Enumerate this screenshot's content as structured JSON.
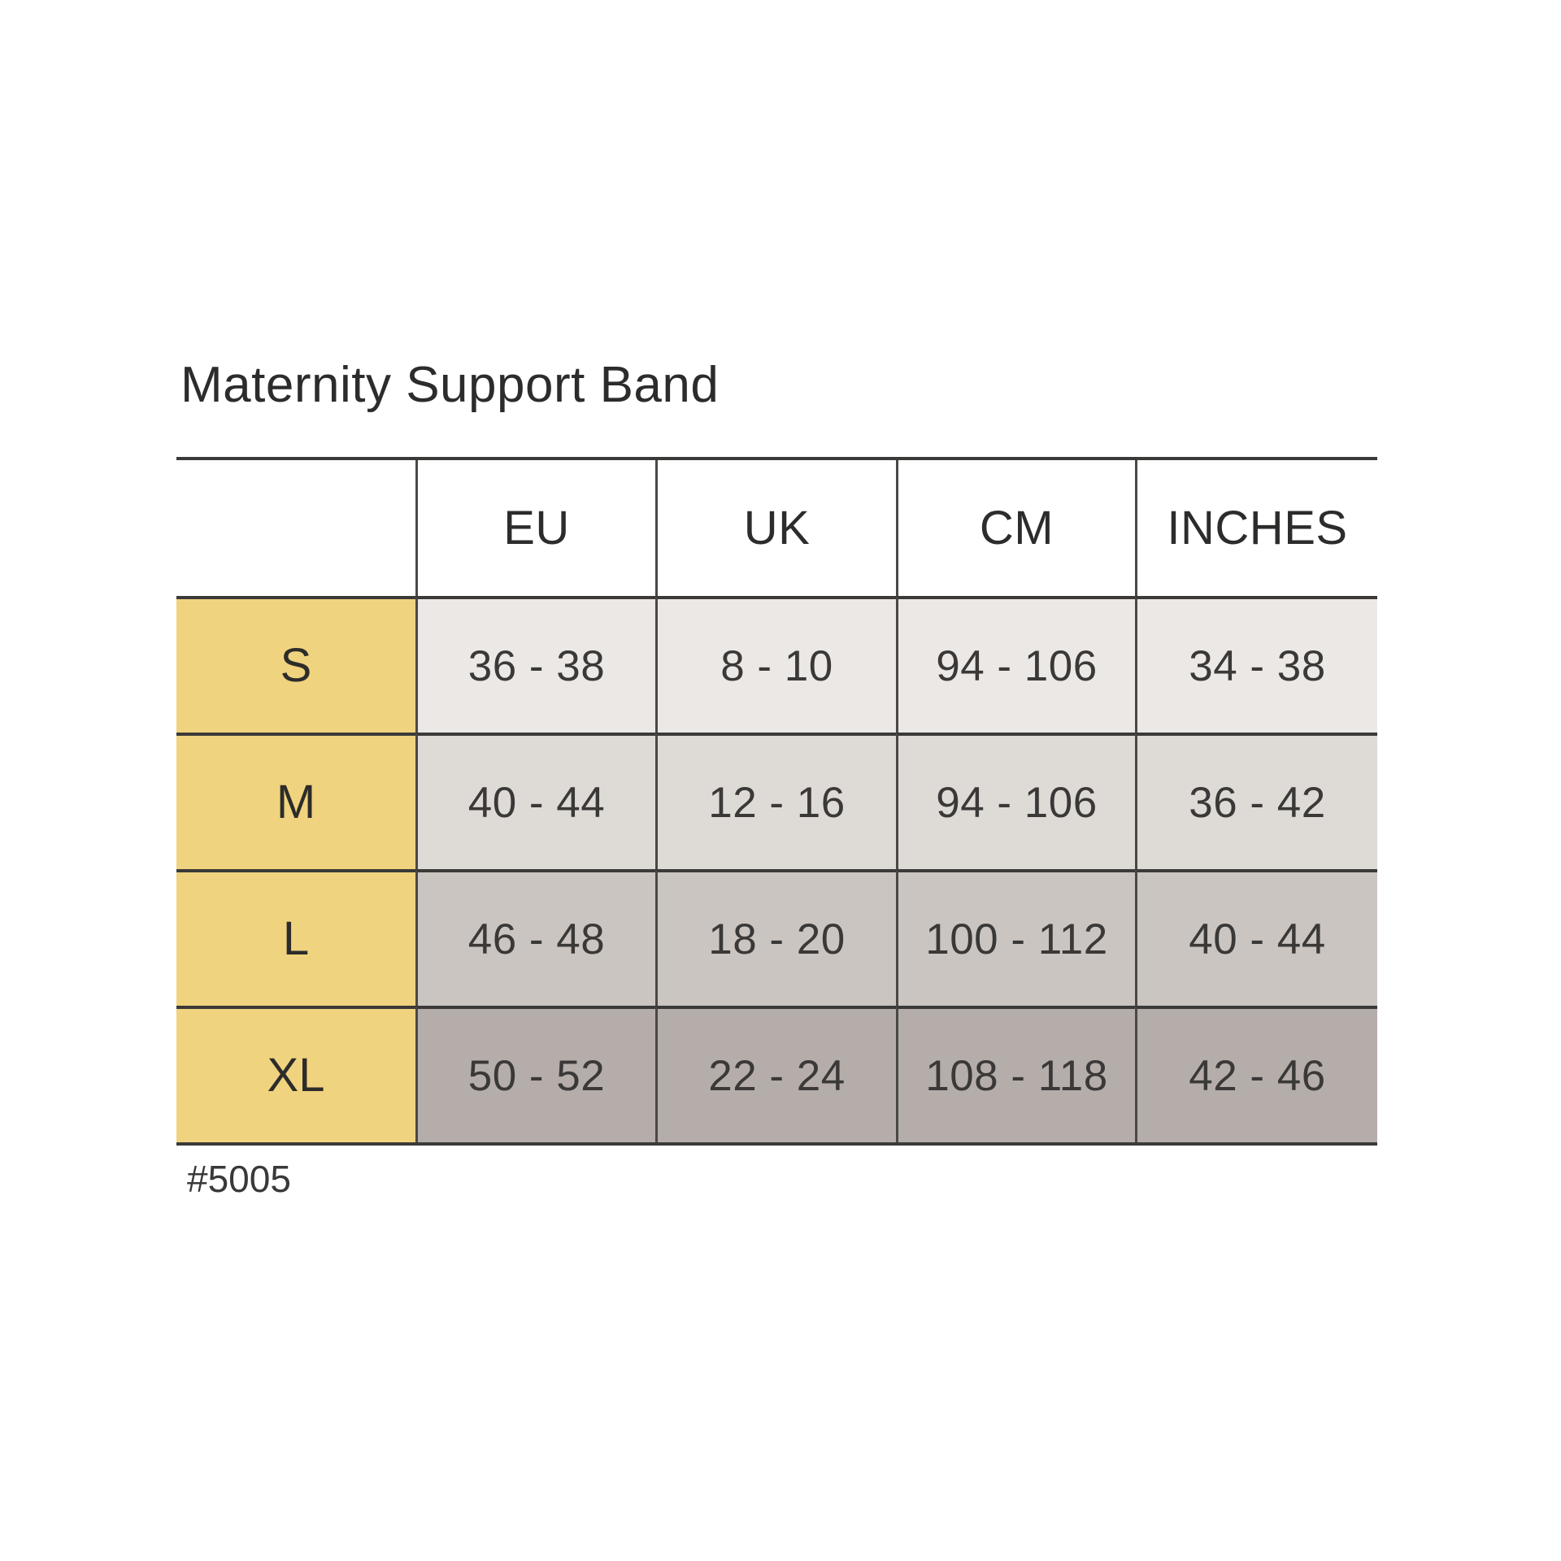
{
  "title": "Maternity Support Band",
  "footer": {
    "sku": "#5005"
  },
  "table": {
    "columns": [
      "EU",
      "UK",
      "CM",
      "INCHES"
    ],
    "rows": [
      {
        "size": "S",
        "eu": "36 - 38",
        "uk": "8 - 10",
        "cm": "94 - 106",
        "inches": "34 - 38"
      },
      {
        "size": "M",
        "eu": "40 - 44",
        "uk": "12 - 16",
        "cm": "94 - 106",
        "inches": "36 - 42"
      },
      {
        "size": "L",
        "eu": "46 - 48",
        "uk": "18 - 20",
        "cm": "100 - 112",
        "inches": "40 - 44"
      },
      {
        "size": "XL",
        "eu": "50 - 52",
        "uk": "22 - 24",
        "cm": "108 - 118",
        "inches": "42 - 46"
      }
    ]
  },
  "theme": {
    "size_column_bg": "#F0D37E",
    "row_bgs": [
      "#EBE8E5",
      "#DEDAD6",
      "#CBC5C1",
      "#B5ADAA"
    ],
    "border": "#4A4845",
    "border_strong": "#3B3A38",
    "ink": "#3A3938",
    "ink_strong": "#2D2C2B"
  }
}
